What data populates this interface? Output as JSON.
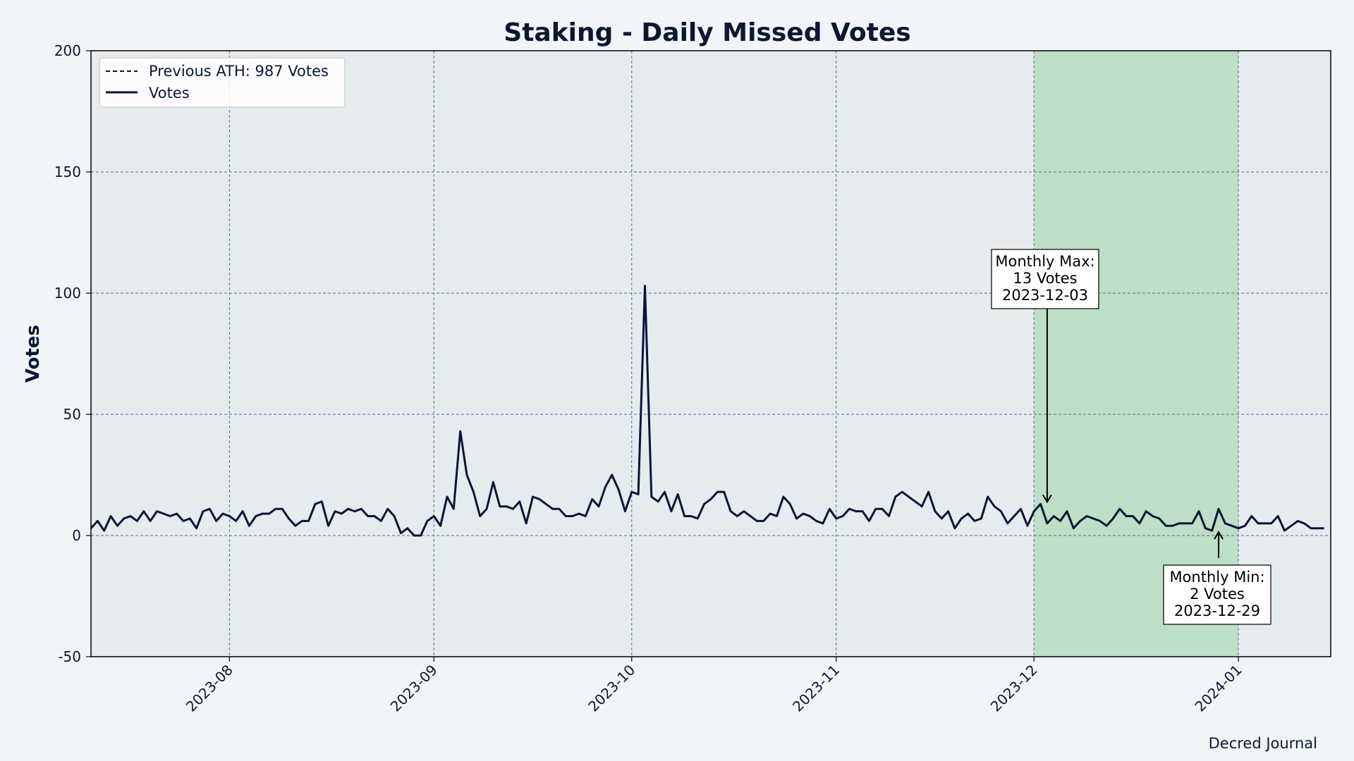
{
  "chart_data": {
    "type": "line",
    "title": "Staking - Daily Missed Votes",
    "xlabel": "",
    "ylabel": "Votes",
    "ylim": [
      -50,
      200
    ],
    "yticks": [
      -50,
      0,
      50,
      100,
      150,
      200
    ],
    "xlim": [
      "2023-07-11",
      "2024-01-15"
    ],
    "xticks": [
      "2023-08",
      "2023-09",
      "2023-10",
      "2023-11",
      "2023-12",
      "2024-01"
    ],
    "grid": true,
    "legend_position": "top-left",
    "legend": [
      "Previous ATH: 987 Votes",
      "Votes"
    ],
    "highlight_range": [
      "2023-12-01",
      "2024-01-01"
    ],
    "colors": {
      "line": "#0b1438",
      "highlight": "#bcdfc5",
      "plot_bg": "#e6ebee",
      "grid": "#5b6a99"
    },
    "start_date": "2023-07-11",
    "series": [
      {
        "name": "Votes",
        "values": [
          3,
          6,
          2,
          8,
          4,
          7,
          8,
          6,
          10,
          6,
          10,
          9,
          8,
          9,
          6,
          7,
          3,
          10,
          11,
          6,
          9,
          8,
          6,
          10,
          4,
          8,
          9,
          9,
          11,
          11,
          7,
          4,
          6,
          6,
          13,
          14,
          4,
          10,
          9,
          11,
          10,
          11,
          8,
          8,
          6,
          11,
          8,
          1,
          3,
          0,
          0,
          6,
          8,
          4,
          16,
          11,
          43,
          25,
          18,
          8,
          11,
          22,
          12,
          12,
          11,
          14,
          5,
          16,
          15,
          13,
          11,
          11,
          8,
          8,
          9,
          8,
          15,
          12,
          20,
          25,
          19,
          10,
          18,
          17,
          103,
          16,
          14,
          18,
          10,
          17,
          8,
          8,
          7,
          13,
          15,
          18,
          18,
          10,
          8,
          10,
          8,
          6,
          6,
          9,
          8,
          16,
          13,
          7,
          9,
          8,
          6,
          5,
          11,
          7,
          8,
          11,
          10,
          10,
          6,
          11,
          11,
          8,
          16,
          18,
          16,
          14,
          12,
          18,
          10,
          7,
          10,
          3,
          7,
          9,
          6,
          7,
          16,
          12,
          10,
          5,
          8,
          11,
          4,
          10,
          13,
          5,
          8,
          6,
          10,
          3,
          6,
          8,
          7,
          6,
          4,
          7,
          11,
          8,
          8,
          5,
          10,
          8,
          7,
          4,
          4,
          5,
          5,
          5,
          10,
          3,
          2,
          11,
          5,
          4,
          3,
          4,
          8,
          5,
          5,
          5,
          8,
          2,
          4,
          6,
          5,
          3,
          3,
          3
        ]
      }
    ],
    "annotations": [
      {
        "lines": [
          "Monthly Max:",
          "13 Votes",
          "2023-12-03"
        ],
        "date": "2023-12-03",
        "value": 13
      },
      {
        "lines": [
          "Monthly Min:",
          "2 Votes",
          "2023-12-29"
        ],
        "date": "2023-12-29",
        "value": 2
      }
    ]
  },
  "credit": "Decred Journal"
}
